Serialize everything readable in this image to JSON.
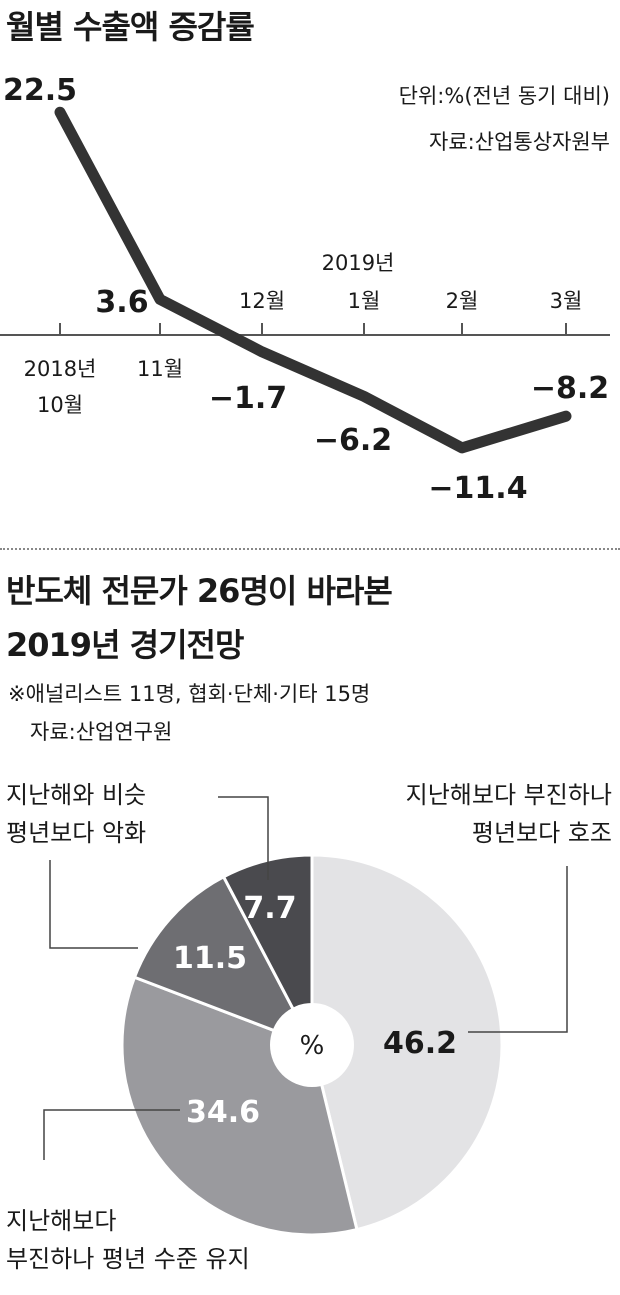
{
  "line_section": {
    "title": "월별 수출액 증감률",
    "unit_note": "단위:%(전년 동기 대비)",
    "source_note": "자료:산업통상자원부",
    "year_2019_label": "2019년"
  },
  "pie_section": {
    "title_line1": "반도체 전문가 26명이 바라본",
    "title_line2": "2019년 경기전망",
    "note_line1": "※애널리스트 11명, 협회·단체·기타 15명",
    "note_line2": "자료:산업연구원",
    "center_label": "%"
  },
  "chart_data": [
    {
      "type": "line",
      "title": "월별 수출액 증감률",
      "x_labels": [
        "2018년 10월",
        "11월",
        "12월",
        "1월",
        "2월",
        "3월"
      ],
      "tick_labels": {
        "oct": [
          "2018년",
          "10월"
        ],
        "nov": "11월",
        "dec": "12월",
        "jan": "1월",
        "feb": "2월",
        "mar": "3월"
      },
      "values": [
        22.5,
        3.6,
        -1.7,
        -6.2,
        -11.4,
        -8.2
      ],
      "value_labels": [
        "22.5",
        "3.6",
        "−1.7",
        "−6.2",
        "−11.4",
        "−8.2"
      ],
      "ylim": [
        -13,
        24
      ],
      "line_color": "#333333"
    },
    {
      "type": "pie",
      "title": "반도체 전문가 26명이 바라본 2019년 경기전망",
      "slices": [
        {
          "label_lines": [
            "지난해보다 부진하나",
            "평년보다 호조"
          ],
          "value": 46.2,
          "color": "#e3e3e5"
        },
        {
          "label_lines": [
            "지난해보다",
            "부진하나 평년 수준 유지"
          ],
          "value": 34.6,
          "color": "#9a9a9e"
        },
        {
          "label_lines": [
            "평년보다 악화"
          ],
          "value": 11.5,
          "color": "#6e6e72"
        },
        {
          "label_lines": [
            "지난해와 비슷"
          ],
          "value": 7.7,
          "color": "#4a4a4e"
        }
      ]
    }
  ]
}
